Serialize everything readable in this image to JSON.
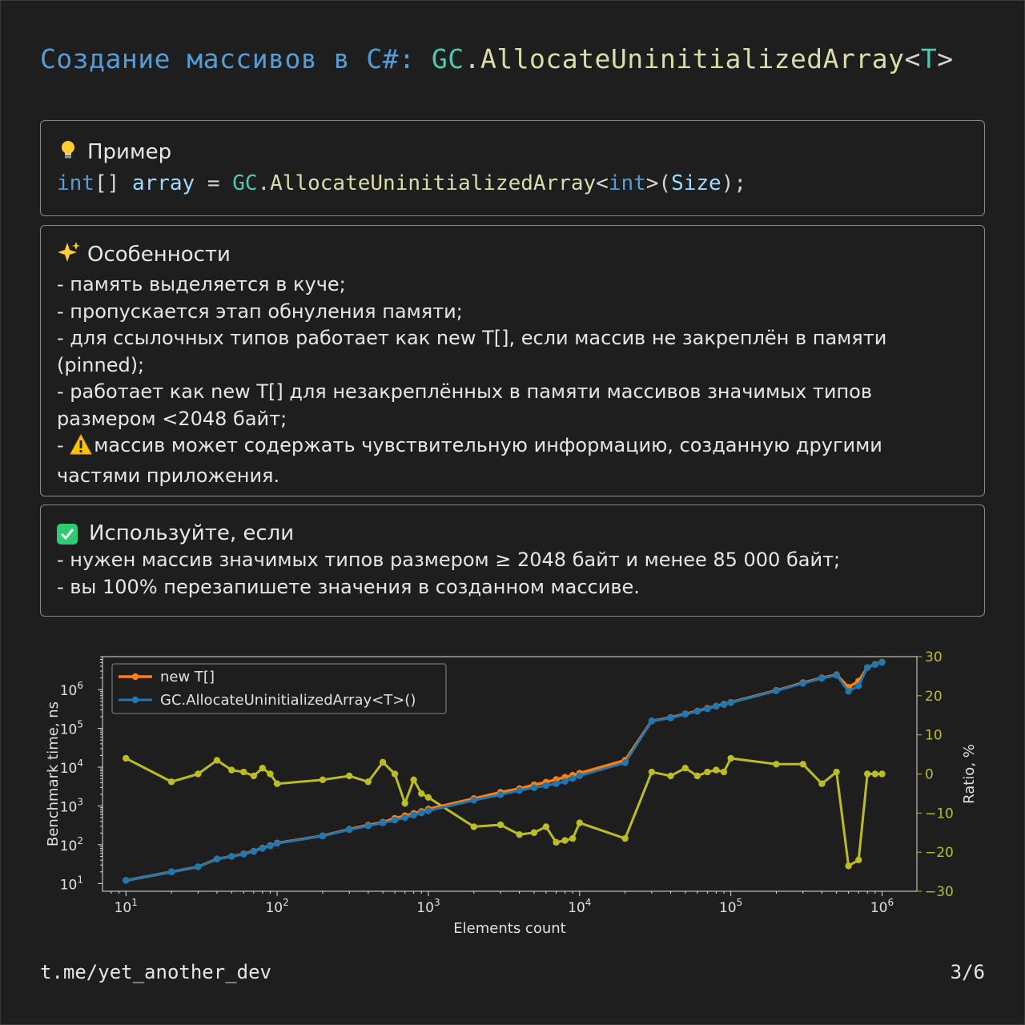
{
  "title": {
    "part1": "Создание массивов в C#: ",
    "gc": "GC",
    "dot": ".",
    "method": "AllocateUninitializedArray",
    "lt": "<",
    "T": "T",
    "gt": ">"
  },
  "example": {
    "icon": "lightbulb-icon",
    "heading": "Пример",
    "code": {
      "int": "int",
      "brackets": "[] ",
      "var": "array",
      "eq": " = ",
      "gc": "GC",
      "dot": ".",
      "method": "AllocateUninitializedArray",
      "lt": "<",
      "int2": "int",
      "gt": ">(",
      "size": "Size",
      "end": ");"
    }
  },
  "features": {
    "icon": "sparkles-icon",
    "heading": "Особенности",
    "lines": [
      "- память выделяется в куче;",
      "- пропускается этап обнуления памяти;",
      "- для ссылочных типов работает как new T[], если массив не закреплён в памяти",
      "(pinned);",
      "- работает как new T[] для незакреплённых в памяти массивов значимых типов",
      "размером <2048 байт;",
      "массив может содержать чувствительную информацию, созданную другими",
      "частями приложения."
    ],
    "warning_prefix": "- "
  },
  "use_if": {
    "icon": "check-box-icon",
    "heading": "Используйте, если",
    "lines": [
      "- нужен массив значимых типов размером ≥ 2048 байт и менее 85 000 байт;",
      "- вы 100% перезапишете значения в созданном массиве."
    ]
  },
  "chart_data": {
    "type": "line",
    "xlabel": "Elements count",
    "ylabel_left": "Benchmark time, ns",
    "ylabel_right": "Ratio, %",
    "x_scale": "log",
    "y_scale_left": "log",
    "xlim": [
      7,
      1700000
    ],
    "ylim_left_exp": [
      0.8,
      6.85
    ],
    "ylim_right": [
      -30,
      30
    ],
    "x_ticks": [
      "10^1",
      "10^2",
      "10^3",
      "10^4",
      "10^5",
      "10^6"
    ],
    "y_ticks_left": [
      "10^1",
      "10^2",
      "10^3",
      "10^4",
      "10^5",
      "10^6"
    ],
    "y_ticks_right": [
      "30",
      "20",
      "10",
      "0",
      "−10",
      "−20",
      "−30"
    ],
    "legend": {
      "position": "top-left",
      "entries": [
        "new T[]",
        "GC.AllocateUninitializedArray<T>()"
      ]
    },
    "colors": {
      "new": "#ff7f0e",
      "gc": "#1f77b4",
      "ratio": "#bcbd22"
    },
    "x": [
      10,
      20,
      30,
      40,
      50,
      60,
      70,
      80,
      90,
      100,
      200,
      300,
      400,
      500,
      600,
      700,
      800,
      900,
      1000,
      2000,
      3000,
      4000,
      5000,
      6000,
      7000,
      8000,
      9000,
      10000,
      20000,
      30000,
      40000,
      50000,
      60000,
      70000,
      80000,
      90000,
      100000,
      200000,
      300000,
      400000,
      500000,
      600000,
      700000,
      800000,
      900000,
      1000000
    ],
    "series": [
      {
        "name": "new T[]",
        "values": [
          12,
          20,
          27,
          43,
          50,
          58,
          68,
          82,
          95,
          110,
          170,
          250,
          320,
          380,
          480,
          560,
          640,
          720,
          830,
          1550,
          2250,
          2800,
          3500,
          4100,
          4800,
          5500,
          6200,
          7000,
          15000,
          155000,
          190000,
          235000,
          280000,
          330000,
          375000,
          420000,
          470000,
          950000,
          1500000,
          2000000,
          2400000,
          1150000,
          1650000,
          3700000,
          4500000,
          5100000
        ]
      },
      {
        "name": "GC.AllocateUninitializedArray<T>()",
        "values": [
          12,
          20,
          27,
          43,
          50,
          57,
          67,
          80,
          93,
          108,
          168,
          245,
          305,
          365,
          430,
          500,
          580,
          660,
          750,
          1400,
          1950,
          2500,
          2950,
          3350,
          3750,
          4300,
          5100,
          6000,
          13000,
          155000,
          185000,
          230000,
          275000,
          320000,
          370000,
          410000,
          460000,
          930000,
          1450000,
          1950000,
          2350000,
          900000,
          1250000,
          3700000,
          4450000,
          5000000
        ]
      },
      {
        "name": "Ratio",
        "values": [
          4,
          -2,
          0,
          3.5,
          1,
          0.5,
          -0.5,
          1.5,
          0,
          -2.5,
          -1.5,
          -0.5,
          -2,
          3,
          0,
          -7.5,
          -1.5,
          -5,
          -6,
          -13.5,
          -13,
          -15.5,
          -15,
          -13.5,
          -17.5,
          -17,
          -16.5,
          -12.5,
          -16.5,
          0.5,
          -0.5,
          1.5,
          -0.5,
          0.5,
          1,
          0.5,
          4,
          2.5,
          2.5,
          -2.5,
          0.5,
          -23.5,
          -22,
          0,
          0,
          0
        ]
      }
    ]
  },
  "footer": {
    "channel": "t.me/yet_another_dev",
    "page": "3/6"
  }
}
